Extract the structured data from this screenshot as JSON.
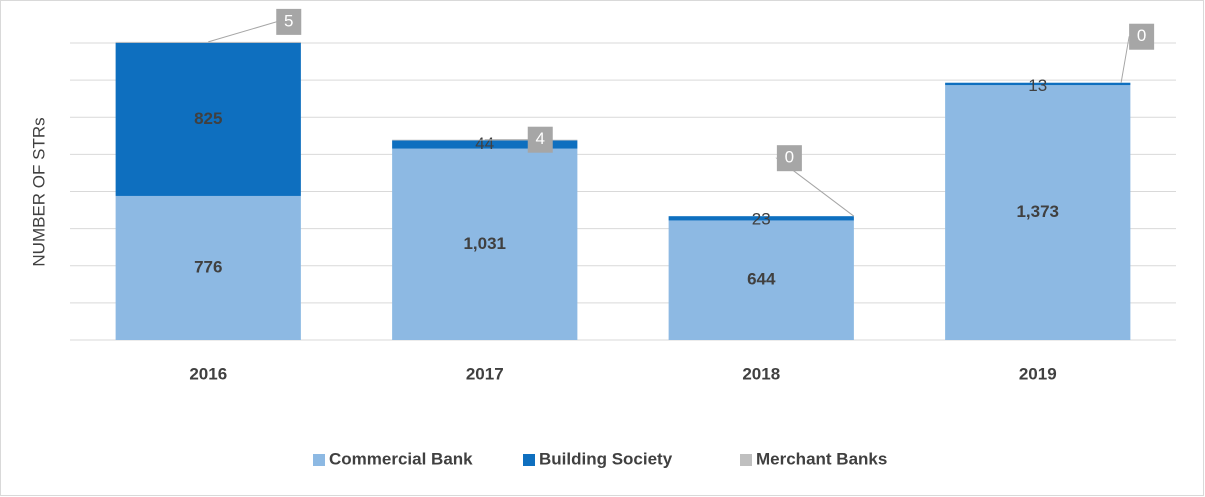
{
  "chart_data": {
    "type": "stacked_bar",
    "y_axis_label": "NUMBER OF STRs",
    "categories": [
      "2016",
      "2017",
      "2018",
      "2019"
    ],
    "series": [
      {
        "name": "Commercial Bank",
        "color": "#8db9e3",
        "values": [
          776,
          1031,
          644,
          1373
        ],
        "value_labels": [
          "776",
          "1,031",
          "644",
          "1,373"
        ]
      },
      {
        "name": "Building Society",
        "color": "#0e6fbf",
        "values": [
          825,
          44,
          23,
          13
        ]
      },
      {
        "name": "Merchant Banks",
        "color": "#bfbfbf",
        "values": [
          5,
          4,
          0,
          0
        ]
      }
    ],
    "ylim": [
      0,
      1600
    ],
    "yticks": [
      0,
      200,
      400,
      600,
      800,
      1000,
      1200,
      1400,
      1600
    ],
    "grid": true
  }
}
